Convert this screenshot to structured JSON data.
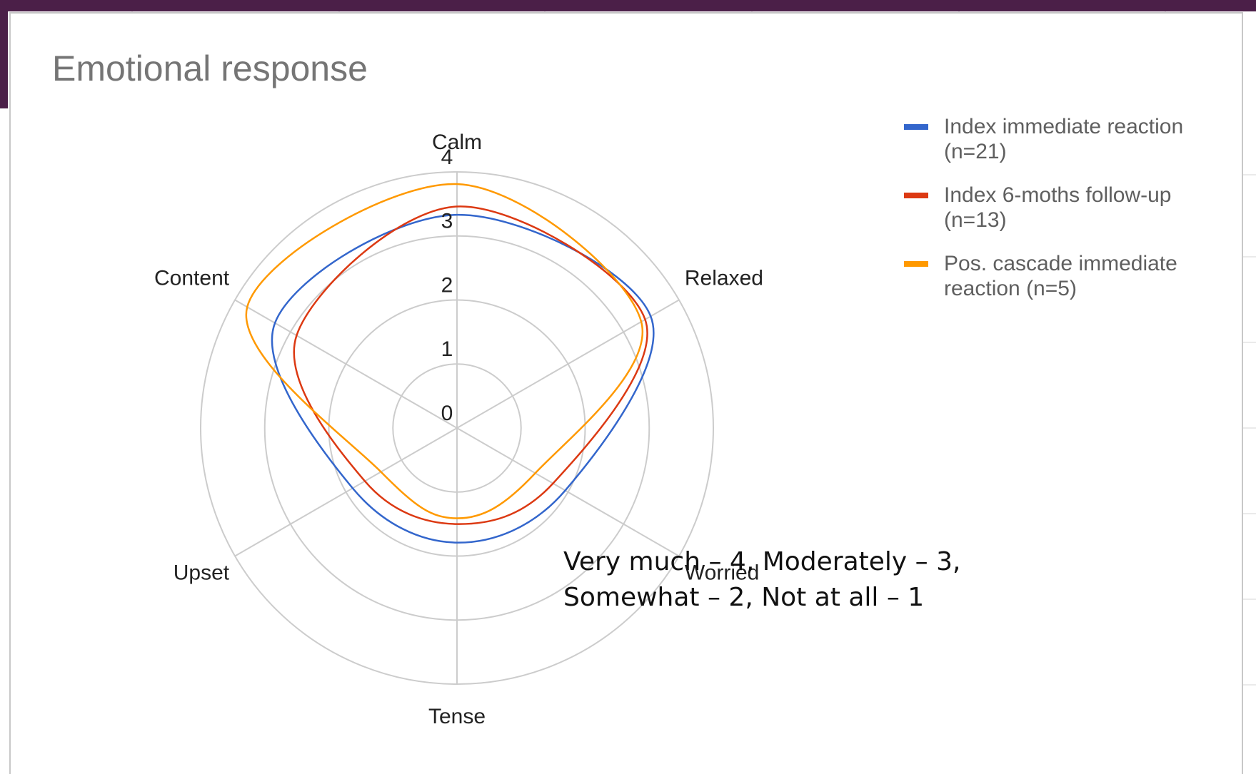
{
  "chart_data": {
    "type": "radar",
    "title": "Emotional response",
    "categories": [
      "Calm",
      "Relaxed",
      "Worried",
      "Tense",
      "Upset",
      "Content"
    ],
    "series": [
      {
        "name": "Index immediate reaction (n=21)",
        "color": "#3366cc",
        "values": [
          3.33,
          3.49,
          1.95,
          1.79,
          1.88,
          3.28
        ]
      },
      {
        "name": "Index 6-moths follow-up (n=13)",
        "color": "#dc3912",
        "values": [
          3.46,
          3.39,
          1.73,
          1.5,
          1.66,
          2.89
        ]
      },
      {
        "name": "Pos. cascade immediate reaction (n=5)",
        "color": "#ff9900",
        "values": [
          3.81,
          3.32,
          1.41,
          1.41,
          1.37,
          3.78
        ]
      }
    ],
    "rlim": [
      0,
      4
    ],
    "rticks": [
      0,
      1,
      2,
      3,
      4
    ],
    "grid": true,
    "legend": "right",
    "annotation": [
      "Very much – 4, Moderately – 3,",
      "Somewhat – 2, Not at all – 1"
    ]
  }
}
